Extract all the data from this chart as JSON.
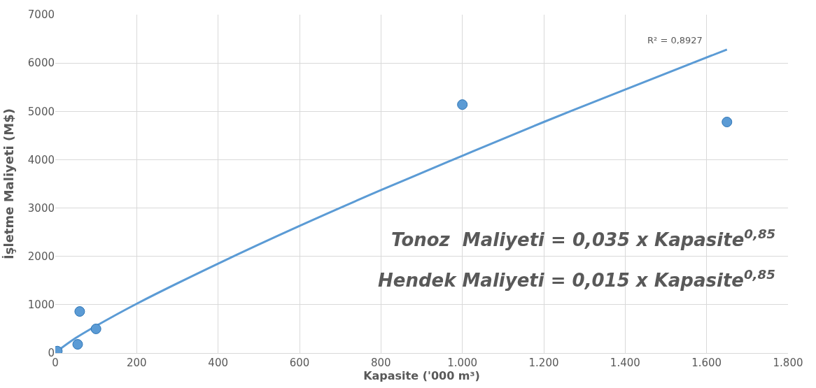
{
  "chart_data": {
    "type": "scatter",
    "xlabel": "Kapasite ('000 m³)",
    "ylabel": "İşletme Maliyeti (M$)",
    "x": [
      5,
      55,
      60,
      100,
      1000,
      1650
    ],
    "values": [
      40,
      180,
      860,
      500,
      5140,
      4780
    ],
    "color": "#5b9bd5",
    "marker": "circle",
    "series": [
      {
        "type": "line",
        "color": "#5b9bd5",
        "x": [
          5,
          50,
          100,
          200,
          400,
          600,
          800,
          1000,
          1200,
          1400,
          1650
        ],
        "values": [
          40,
          310,
          560,
          1020,
          1850,
          2630,
          3370,
          4080,
          4780,
          5450,
          6280
        ],
        "line_style": "solid",
        "marker": "none"
      }
    ],
    "xlim": [
      0,
      1800
    ],
    "xticks": [
      0,
      200,
      400,
      600,
      800,
      {
        "value": 1000,
        "label": "1.000"
      },
      {
        "value": 1200,
        "label": "1.200"
      },
      {
        "value": 1400,
        "label": "1.400"
      },
      {
        "value": 1600,
        "label": "1.600"
      },
      {
        "value": 1800,
        "label": "1.800"
      }
    ],
    "ylim": [
      0,
      7000
    ],
    "yticks": [
      0,
      1000,
      2000,
      3000,
      4000,
      5000,
      6000,
      7000
    ],
    "grid": true,
    "annotations": [
      "R² = 0,8927",
      "Tonoz  Maliyeti = 0,035 x Kapasite$^{0,85}$",
      "Hendek Maliyeti = 0,015 x Kapasite$^{0,85}$"
    ]
  }
}
